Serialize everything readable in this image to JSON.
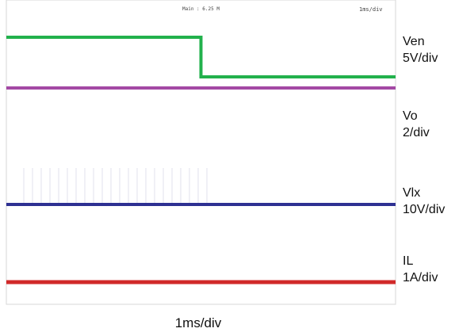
{
  "chart_data": {
    "type": "line",
    "header": {
      "main": "Main : 6.25 M",
      "timebase": "1ms/div"
    },
    "xlabel": "1ms/div",
    "x": [
      0,
      4.5,
      4.5,
      9
    ],
    "series": [
      {
        "name": "Ven",
        "scale": "5V/div",
        "color": "#22b14c",
        "x": [
          0,
          4.5,
          4.5,
          9
        ],
        "y": [
          1,
          1,
          0,
          0
        ]
      },
      {
        "name": "Vo",
        "scale": "2/div",
        "color": "#a349a4",
        "x": [
          0,
          9
        ],
        "y": [
          0,
          0
        ]
      },
      {
        "name": "Vlx",
        "scale": "10V/div",
        "color": "#2e3192",
        "x": [
          0,
          9
        ],
        "y": [
          0,
          0
        ]
      },
      {
        "name": "IL",
        "scale": "1A/div",
        "color": "#d12a2a",
        "x": [
          0,
          9
        ],
        "y": [
          0,
          0
        ]
      }
    ],
    "grid": false
  }
}
